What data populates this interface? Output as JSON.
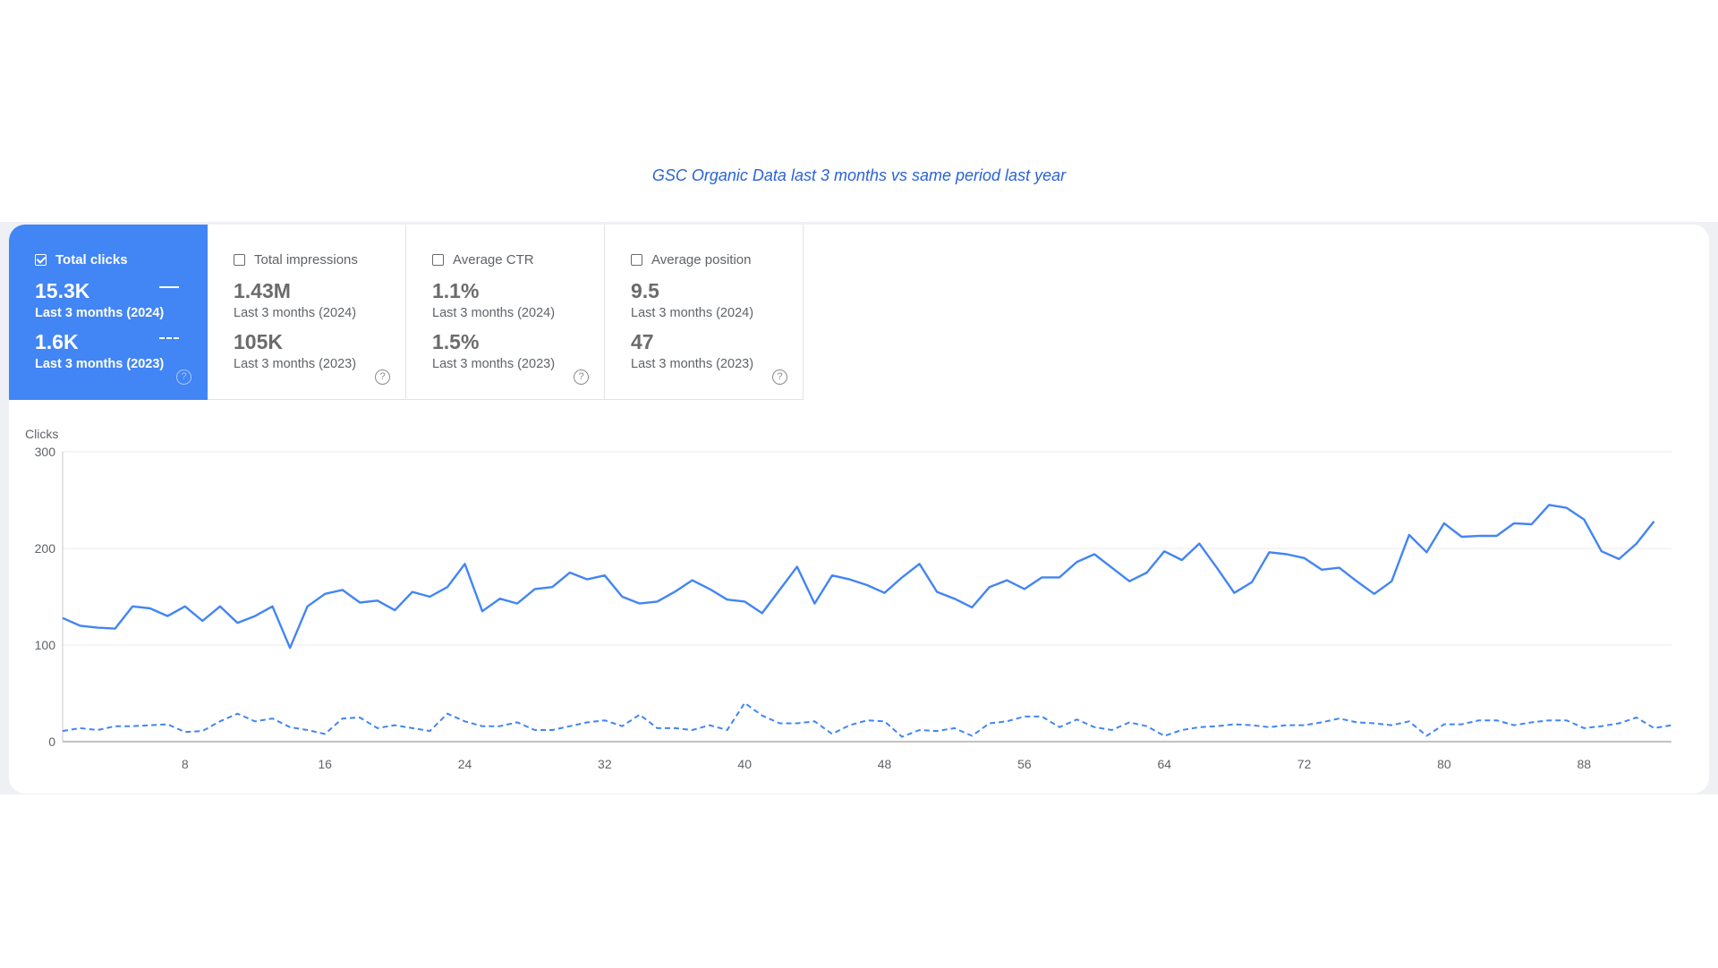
{
  "caption": "GSC Organic Data last 3 months vs same period last year",
  "metrics": [
    {
      "name": "Total clicks",
      "checked": true,
      "value_2024": "15.3K",
      "period_2024": "Last 3 months (2024)",
      "value_2023": "1.6K",
      "period_2023": "Last 3 months (2023)"
    },
    {
      "name": "Total impressions",
      "checked": false,
      "value_2024": "1.43M",
      "period_2024": "Last 3 months (2024)",
      "value_2023": "105K",
      "period_2023": "Last 3 months (2023)"
    },
    {
      "name": "Average CTR",
      "checked": false,
      "value_2024": "1.1%",
      "period_2024": "Last 3 months (2024)",
      "value_2023": "1.5%",
      "period_2023": "Last 3 months (2023)"
    },
    {
      "name": "Average position",
      "checked": false,
      "value_2024": "9.5",
      "period_2024": "Last 3 months (2024)",
      "value_2023": "47",
      "period_2023": "Last 3 months (2023)"
    }
  ],
  "help_glyph": "?",
  "colors": {
    "accent": "#4285f4",
    "caption": "#2a63d4",
    "grid": "#ebebeb"
  },
  "chart_data": {
    "type": "line",
    "ylabel": "Clicks",
    "ylim": [
      0,
      300
    ],
    "yticks": [
      0,
      100,
      200,
      300
    ],
    "xlim": [
      1,
      93
    ],
    "xticks": [
      8,
      16,
      24,
      32,
      40,
      48,
      56,
      64,
      72,
      80,
      88
    ],
    "grid": true,
    "series": [
      {
        "style": "solid",
        "values": [
          128,
          120,
          118,
          117,
          140,
          138,
          130,
          140,
          125,
          140,
          123,
          130,
          140,
          97,
          140,
          153,
          157,
          144,
          146,
          136,
          155,
          150,
          160,
          184,
          135,
          148,
          143,
          158,
          160,
          175,
          168,
          172,
          150,
          143,
          145,
          155,
          167,
          158,
          147,
          145,
          133,
          157,
          181,
          143,
          172,
          168,
          162,
          154,
          170,
          184,
          155,
          148,
          139,
          160,
          167,
          158,
          170,
          170,
          186,
          194,
          180,
          166,
          175,
          197,
          188,
          205,
          180,
          154,
          165,
          196,
          194,
          190,
          178,
          180,
          166,
          153,
          166,
          214,
          196,
          226,
          212,
          213,
          213,
          226,
          225,
          245,
          242,
          230,
          197,
          189,
          205,
          228
        ],
        "color": "#4285f4"
      },
      {
        "style": "dashed",
        "values": [
          11,
          14,
          12,
          16,
          16,
          17,
          18,
          10,
          11,
          21,
          29,
          21,
          24,
          15,
          12,
          8,
          24,
          25,
          14,
          17,
          14,
          11,
          29,
          21,
          16,
          16,
          20,
          12,
          12,
          16,
          20,
          22,
          16,
          28,
          14,
          14,
          12,
          17,
          12,
          40,
          27,
          19,
          19,
          21,
          8,
          17,
          22,
          21,
          5,
          12,
          11,
          14,
          6,
          19,
          21,
          26,
          26,
          15,
          23,
          15,
          12,
          20,
          16,
          6,
          12,
          15,
          16,
          18,
          17,
          15,
          17,
          17,
          20,
          24,
          20,
          19,
          17,
          21,
          6,
          18,
          18,
          22,
          22,
          17,
          20,
          22,
          22,
          14,
          16,
          19,
          25,
          14,
          17
        ],
        "color": "#4285f4"
      }
    ]
  }
}
